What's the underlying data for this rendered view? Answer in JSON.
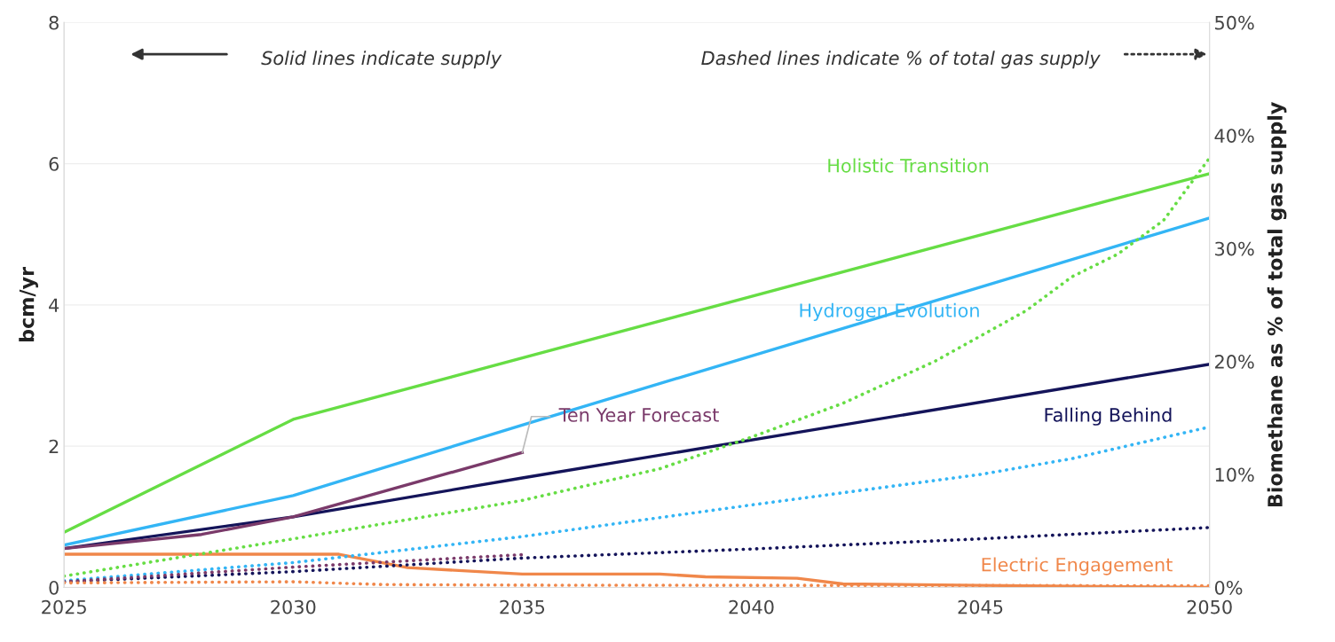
{
  "chart_data": {
    "type": "line",
    "ylabel": "bcm/yr",
    "y2label": "Biomethane as % of total gas supply",
    "xlim": [
      2025,
      2050
    ],
    "xticks": [
      2025,
      2030,
      2035,
      2040,
      2045,
      2050
    ],
    "ylim": [
      0,
      8
    ],
    "yticks": [
      0,
      2,
      4,
      6,
      8
    ],
    "y2lim": [
      0,
      50
    ],
    "y2ticks": [
      {
        "value": 0,
        "label": "0%"
      },
      {
        "value": 10,
        "label": "10%"
      },
      {
        "value": 20,
        "label": "20%"
      },
      {
        "value": 30,
        "label": "30%"
      },
      {
        "value": 40,
        "label": "40%"
      },
      {
        "value": 50,
        "label": "50%"
      }
    ],
    "grid": "y",
    "marker": "none",
    "annotations": [
      "Solid lines indicate supply",
      "Dashed lines indicate % of total gas supply"
    ],
    "series": [
      {
        "name": "Holistic Transition",
        "color": "#66dd44",
        "line_style": "solid",
        "x": [
          2025,
          2030,
          2050
        ],
        "values": [
          0.78,
          2.38,
          5.86
        ]
      },
      {
        "name": "Hydrogen Evolution",
        "color": "#33b5f5",
        "line_style": "solid",
        "x": [
          2025,
          2030,
          2035,
          2050
        ],
        "values": [
          0.6,
          1.3,
          2.3,
          5.23
        ]
      },
      {
        "name": "Falling Behind",
        "color": "#14145a",
        "line_style": "solid",
        "x": [
          2025,
          2030,
          2035,
          2050
        ],
        "values": [
          0.55,
          1.0,
          1.55,
          3.16
        ]
      },
      {
        "name": "Ten Year Forecast",
        "color": "#7a3a6a",
        "line_style": "solid",
        "x": [
          2025,
          2028,
          2030,
          2035
        ],
        "values": [
          0.55,
          0.75,
          1.0,
          1.91
        ]
      },
      {
        "name": "Electric Engagement",
        "color": "#f0874a",
        "line_style": "solid",
        "x": [
          2025,
          2031,
          2032.5,
          2035,
          2038,
          2039,
          2041,
          2042,
          2045,
          2050
        ],
        "values": [
          0.47,
          0.47,
          0.28,
          0.19,
          0.19,
          0.15,
          0.13,
          0.05,
          0.03,
          0.0
        ]
      },
      {
        "color": "#66dd44",
        "line_style": "dotted",
        "axis": "y2",
        "x": [
          2025,
          2030,
          2035,
          2038,
          2040,
          2042,
          2044,
          2046,
          2047,
          2048,
          2049,
          2050
        ],
        "values": [
          1.0,
          4.3,
          7.7,
          10.5,
          13.3,
          16.3,
          20.0,
          24.5,
          27.5,
          29.5,
          32.5,
          38
        ]
      },
      {
        "color": "#33b5f5",
        "line_style": "dotted",
        "axis": "y2",
        "x": [
          2025,
          2030,
          2035,
          2040,
          2045,
          2047,
          2050
        ],
        "values": [
          0.6,
          2.2,
          4.5,
          7.3,
          10.0,
          11.4,
          14.2
        ]
      },
      {
        "color": "#14145a",
        "line_style": "dotted",
        "axis": "y2",
        "x": [
          2025,
          2030,
          2035,
          2040,
          2045,
          2050
        ],
        "values": [
          0.5,
          1.4,
          2.6,
          3.4,
          4.3,
          5.3
        ]
      },
      {
        "color": "#7a3a6a",
        "line_style": "dotted",
        "axis": "y2",
        "x": [
          2025,
          2030,
          2035
        ],
        "values": [
          0.5,
          1.8,
          2.9
        ]
      },
      {
        "color": "#f0874a",
        "line_style": "dotted",
        "axis": "y2",
        "x": [
          2025,
          2030,
          2032,
          2035,
          2050
        ],
        "values": [
          0.4,
          0.5,
          0.25,
          0.2,
          0.15
        ]
      }
    ]
  }
}
